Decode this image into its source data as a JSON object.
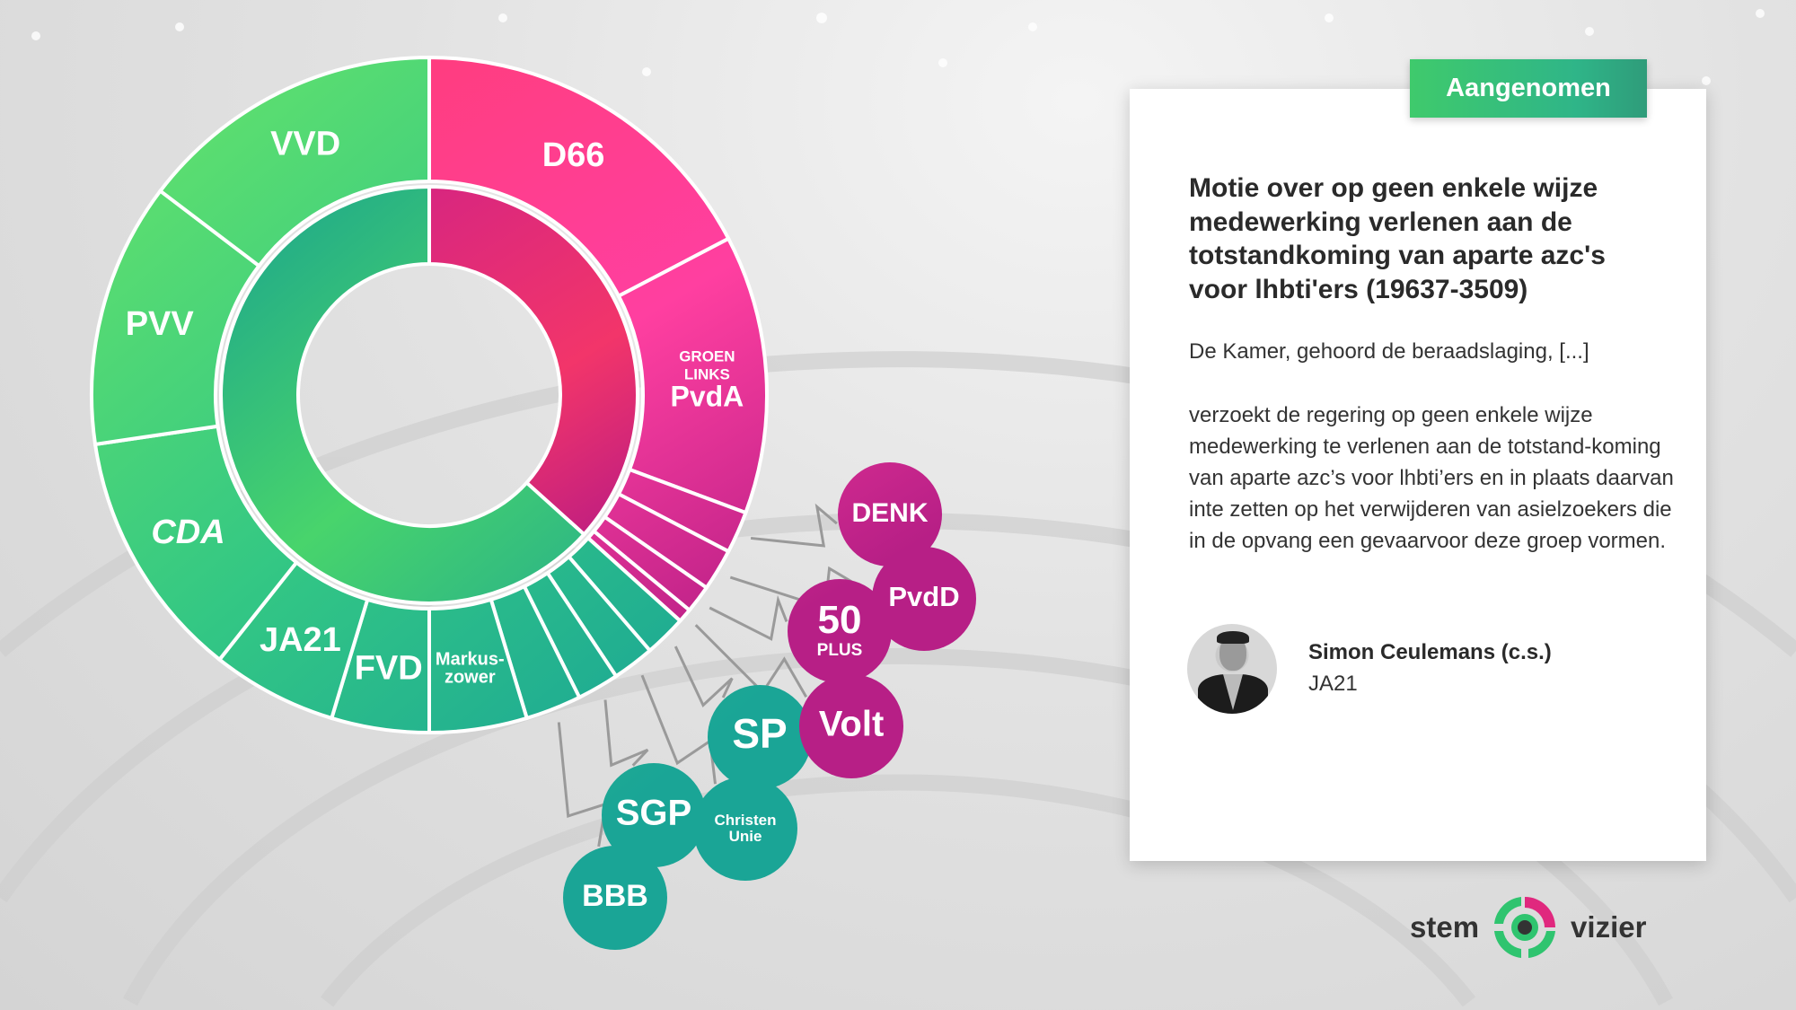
{
  "status_badge": "Aangenomen",
  "motion": {
    "title": "Motie over op geen enkele wijze medewerking verlenen aan de totstandkoming van aparte azc's voor lhbti'ers (19637-3509)",
    "intro": "De Kamer, gehoord de beraadslaging, [...]",
    "body": "verzoekt de regering op geen enkele wijze medewerking te verlenen aan de totstand-koming van aparte azc’s voor lhbti’ers en in plaats daarvan inte zetten op het verwijderen van asielzoekers die in de opvang een gevaarvoor deze groep vormen.",
    "submitter_name": "Simon Ceulemans (c.s.)",
    "submitter_party": "JA21"
  },
  "logo": {
    "left": "stem",
    "right": "vizier"
  },
  "colors": {
    "for": "#3fcf78",
    "against": "#e0287e",
    "for_dark": "#22a88e",
    "against_dark": "#c21f82"
  },
  "chart_data": {
    "type": "pie",
    "variant": "double donut (outer: parties by seats, inner: votes for/against)",
    "total": 150,
    "inner_ring": [
      {
        "vote": "against",
        "seats": 55
      },
      {
        "vote": "for",
        "seats": 95
      }
    ],
    "parties": [
      {
        "label": "D66",
        "seats": 26,
        "vote": "against",
        "placement": "ring"
      },
      {
        "label": "GROEN LINKS PvdA",
        "seats": 20,
        "vote": "against",
        "placement": "ring"
      },
      {
        "label": "DENK",
        "seats": 3,
        "vote": "against",
        "placement": "bubble"
      },
      {
        "label": "PvdD",
        "seats": 3,
        "vote": "against",
        "placement": "bubble"
      },
      {
        "label": "50 PLUS",
        "seats": 2,
        "vote": "against",
        "placement": "bubble"
      },
      {
        "label": "Volt",
        "seats": 1,
        "vote": "against",
        "placement": "bubble"
      },
      {
        "label": "SP",
        "seats": 3,
        "vote": "for",
        "placement": "bubble"
      },
      {
        "label": "Christen Unie",
        "seats": 3,
        "vote": "for",
        "placement": "bubble"
      },
      {
        "label": "SGP",
        "seats": 3,
        "vote": "for",
        "placement": "bubble"
      },
      {
        "label": "BBB",
        "seats": 4,
        "vote": "for",
        "placement": "bubble"
      },
      {
        "label": "Markus-zower",
        "seats": 7,
        "vote": "for",
        "placement": "ring"
      },
      {
        "label": "FVD",
        "seats": 7,
        "vote": "for",
        "placement": "ring"
      },
      {
        "label": "JA21",
        "seats": 9,
        "vote": "for",
        "placement": "ring"
      },
      {
        "label": "CDA",
        "seats": 18,
        "vote": "for",
        "placement": "ring"
      },
      {
        "label": "PVV",
        "seats": 19,
        "vote": "for",
        "placement": "ring"
      },
      {
        "label": "VVD",
        "seats": 22,
        "vote": "for",
        "placement": "ring"
      }
    ]
  }
}
